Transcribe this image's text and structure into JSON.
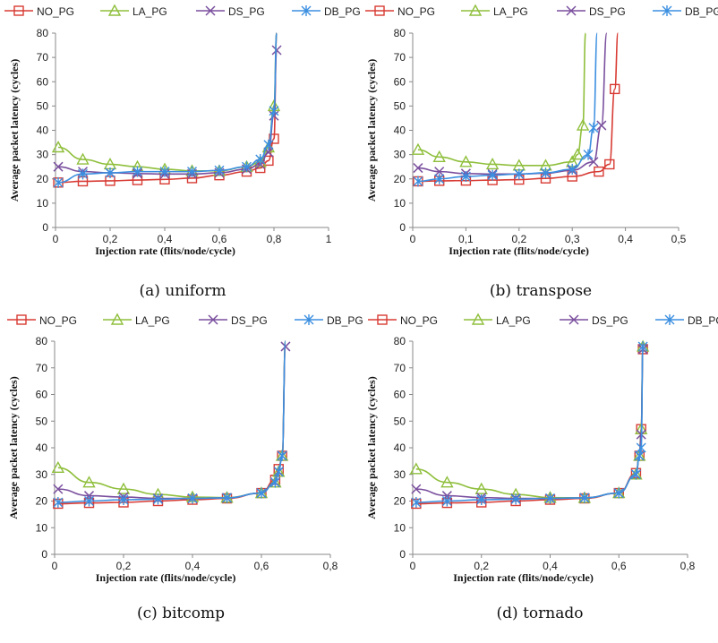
{
  "figure": {
    "legend_entries": [
      "NO_PG",
      "LA_PG",
      "DS_PG",
      "DB_PG"
    ],
    "colors": {
      "NO_PG": "#d83b34",
      "LA_PG": "#8fbf3c",
      "DS_PG": "#7a4f9e",
      "DB_PG": "#3b8fe0"
    },
    "markers": {
      "NO_PG": "square",
      "LA_PG": "triangle",
      "DS_PG": "x",
      "DB_PG": "asterisk"
    }
  },
  "chart_data": [
    {
      "type": "line",
      "caption": "(a) uniform",
      "xlabel": "Injection rate (flits/node/cycle)",
      "ylabel": "Average packet latency (cycles)",
      "xlim": [
        0,
        1
      ],
      "ylim": [
        0,
        80
      ],
      "xticks": [
        "0",
        "0,2",
        "0,4",
        "0,6",
        "0,8",
        "1"
      ],
      "xtick_values": [
        0,
        0.2,
        0.4,
        0.6,
        0.8,
        1.0
      ],
      "yticks": [
        "0",
        "10",
        "20",
        "30",
        "40",
        "50",
        "60",
        "70",
        "80"
      ],
      "ytick_values": [
        0,
        10,
        20,
        30,
        40,
        50,
        60,
        70,
        80
      ],
      "grid": false,
      "legend": "top",
      "series": [
        {
          "name": "NO_PG",
          "points": [
            [
              0.01,
              18.5
            ],
            [
              0.1,
              19
            ],
            [
              0.2,
              19.2
            ],
            [
              0.3,
              19.5
            ],
            [
              0.4,
              19.8
            ],
            [
              0.5,
              20.3
            ],
            [
              0.6,
              21.5
            ],
            [
              0.7,
              23
            ],
            [
              0.75,
              24.5
            ],
            [
              0.78,
              27.5
            ],
            [
              0.8,
              36.5
            ],
            [
              0.81,
              80
            ]
          ]
        },
        {
          "name": "LA_PG",
          "points": [
            [
              0.01,
              33
            ],
            [
              0.1,
              28
            ],
            [
              0.2,
              26
            ],
            [
              0.3,
              25
            ],
            [
              0.4,
              24
            ],
            [
              0.5,
              23.3
            ],
            [
              0.6,
              23.3
            ],
            [
              0.7,
              25
            ],
            [
              0.75,
              27
            ],
            [
              0.78,
              33
            ],
            [
              0.8,
              50
            ],
            [
              0.81,
              80
            ]
          ]
        },
        {
          "name": "DS_PG",
          "points": [
            [
              0.01,
              25
            ],
            [
              0.1,
              23
            ],
            [
              0.2,
              22.5
            ],
            [
              0.3,
              22.2
            ],
            [
              0.4,
              22
            ],
            [
              0.5,
              22
            ],
            [
              0.6,
              22.5
            ],
            [
              0.7,
              24
            ],
            [
              0.75,
              26
            ],
            [
              0.78,
              31
            ],
            [
              0.8,
              46
            ],
            [
              0.81,
              73
            ]
          ]
        },
        {
          "name": "DB_PG",
          "points": [
            [
              0.01,
              18.5
            ],
            [
              0.1,
              22
            ],
            [
              0.2,
              22.5
            ],
            [
              0.3,
              23
            ],
            [
              0.4,
              23
            ],
            [
              0.5,
              23
            ],
            [
              0.6,
              23.5
            ],
            [
              0.7,
              25
            ],
            [
              0.75,
              28
            ],
            [
              0.78,
              34
            ],
            [
              0.8,
              48
            ],
            [
              0.81,
              80
            ]
          ]
        }
      ]
    },
    {
      "type": "line",
      "caption": "(b) transpose",
      "xlabel": "Injection rate (flits/node/cycle)",
      "ylabel": "Average packet latency (cycles)",
      "xlim": [
        0,
        0.5
      ],
      "ylim": [
        0,
        80
      ],
      "xticks": [
        "0",
        "0,1",
        "0,2",
        "0,3",
        "0,4",
        "0,5"
      ],
      "xtick_values": [
        0,
        0.1,
        0.2,
        0.3,
        0.4,
        0.5
      ],
      "yticks": [
        "0",
        "10",
        "20",
        "30",
        "40",
        "50",
        "60",
        "70",
        "80"
      ],
      "ytick_values": [
        0,
        10,
        20,
        30,
        40,
        50,
        60,
        70,
        80
      ],
      "grid": false,
      "legend": "top",
      "series": [
        {
          "name": "NO_PG",
          "points": [
            [
              0.01,
              19
            ],
            [
              0.05,
              19.2
            ],
            [
              0.1,
              19.3
            ],
            [
              0.15,
              19.5
            ],
            [
              0.2,
              19.7
            ],
            [
              0.25,
              20.2
            ],
            [
              0.3,
              21
            ],
            [
              0.35,
              23
            ],
            [
              0.37,
              26
            ],
            [
              0.38,
              57
            ],
            [
              0.386,
              80
            ]
          ]
        },
        {
          "name": "LA_PG",
          "points": [
            [
              0.01,
              32
            ],
            [
              0.05,
              29
            ],
            [
              0.1,
              27
            ],
            [
              0.15,
              26
            ],
            [
              0.2,
              25.5
            ],
            [
              0.25,
              25.5
            ],
            [
              0.3,
              27
            ],
            [
              0.31,
              30
            ],
            [
              0.32,
              42
            ],
            [
              0.325,
              80
            ]
          ]
        },
        {
          "name": "DS_PG",
          "points": [
            [
              0.01,
              24.5
            ],
            [
              0.05,
              23
            ],
            [
              0.1,
              22.2
            ],
            [
              0.15,
              22
            ],
            [
              0.2,
              22
            ],
            [
              0.25,
              22.3
            ],
            [
              0.3,
              23.5
            ],
            [
              0.34,
              27
            ],
            [
              0.355,
              42
            ],
            [
              0.365,
              80
            ]
          ]
        },
        {
          "name": "DB_PG",
          "points": [
            [
              0.01,
              19
            ],
            [
              0.05,
              20
            ],
            [
              0.1,
              21
            ],
            [
              0.15,
              21.5
            ],
            [
              0.2,
              22
            ],
            [
              0.25,
              22.5
            ],
            [
              0.3,
              24
            ],
            [
              0.33,
              30
            ],
            [
              0.34,
              41
            ],
            [
              0.347,
              80
            ]
          ]
        }
      ]
    },
    {
      "type": "line",
      "caption": "(c) bitcomp",
      "xlabel": "Injection rate (flits/node/cycle)",
      "ylabel": "Average packet latency (cycles)",
      "xlim": [
        0,
        0.8
      ],
      "ylim": [
        0,
        80
      ],
      "xticks": [
        "0",
        "0,2",
        "0,4",
        "0,6",
        "0,8"
      ],
      "xtick_values": [
        0,
        0.2,
        0.4,
        0.6,
        0.8
      ],
      "yticks": [
        "0",
        "10",
        "20",
        "30",
        "40",
        "50",
        "60",
        "70",
        "80"
      ],
      "ytick_values": [
        0,
        10,
        20,
        30,
        40,
        50,
        60,
        70,
        80
      ],
      "grid": false,
      "legend": "top",
      "series": [
        {
          "name": "NO_PG",
          "points": [
            [
              0.01,
              19
            ],
            [
              0.1,
              19.3
            ],
            [
              0.2,
              19.5
            ],
            [
              0.3,
              20
            ],
            [
              0.4,
              20.5
            ],
            [
              0.5,
              21
            ],
            [
              0.6,
              23
            ],
            [
              0.64,
              28
            ],
            [
              0.65,
              32
            ],
            [
              0.66,
              37
            ],
            [
              0.67,
              80
            ]
          ]
        },
        {
          "name": "LA_PG",
          "points": [
            [
              0.01,
              32.5
            ],
            [
              0.1,
              27
            ],
            [
              0.2,
              24.5
            ],
            [
              0.3,
              22.5
            ],
            [
              0.4,
              21.5
            ],
            [
              0.5,
              21.3
            ],
            [
              0.6,
              23
            ],
            [
              0.64,
              27
            ],
            [
              0.65,
              31
            ],
            [
              0.66,
              37
            ],
            [
              0.67,
              80
            ]
          ]
        },
        {
          "name": "DS_PG",
          "points": [
            [
              0.01,
              24.5
            ],
            [
              0.1,
              22
            ],
            [
              0.2,
              21.5
            ],
            [
              0.3,
              21
            ],
            [
              0.4,
              21
            ],
            [
              0.5,
              21.2
            ],
            [
              0.6,
              23
            ],
            [
              0.64,
              27
            ],
            [
              0.65,
              31
            ],
            [
              0.66,
              37
            ],
            [
              0.67,
              78
            ]
          ]
        },
        {
          "name": "DB_PG",
          "points": [
            [
              0.01,
              19.5
            ],
            [
              0.1,
              20
            ],
            [
              0.2,
              20.5
            ],
            [
              0.3,
              20.7
            ],
            [
              0.4,
              21
            ],
            [
              0.5,
              21.2
            ],
            [
              0.6,
              23
            ],
            [
              0.64,
              27
            ],
            [
              0.65,
              31
            ],
            [
              0.66,
              37
            ],
            [
              0.67,
              80
            ]
          ]
        }
      ]
    },
    {
      "type": "line",
      "caption": "(d) tornado",
      "xlabel": "Injection rate (flits/node/cycle)",
      "ylabel": "Average packet latency (cycles)",
      "xlim": [
        0,
        0.8
      ],
      "ylim": [
        0,
        80
      ],
      "xticks": [
        "0",
        "0,2",
        "0,4",
        "0,6",
        "0,8"
      ],
      "xtick_values": [
        0,
        0.2,
        0.4,
        0.6,
        0.8
      ],
      "yticks": [
        "0",
        "10",
        "20",
        "30",
        "40",
        "50",
        "60",
        "70",
        "80"
      ],
      "ytick_values": [
        0,
        10,
        20,
        30,
        40,
        50,
        60,
        70,
        80
      ],
      "grid": false,
      "legend": "top",
      "series": [
        {
          "name": "NO_PG",
          "points": [
            [
              0.01,
              19
            ],
            [
              0.1,
              19.3
            ],
            [
              0.2,
              19.5
            ],
            [
              0.3,
              20
            ],
            [
              0.4,
              20.5
            ],
            [
              0.5,
              21
            ],
            [
              0.6,
              23
            ],
            [
              0.65,
              30.5
            ],
            [
              0.66,
              37
            ],
            [
              0.665,
              47
            ],
            [
              0.67,
              77
            ]
          ]
        },
        {
          "name": "LA_PG",
          "points": [
            [
              0.01,
              32
            ],
            [
              0.1,
              27
            ],
            [
              0.2,
              24.5
            ],
            [
              0.3,
              22.5
            ],
            [
              0.4,
              21.3
            ],
            [
              0.5,
              21.2
            ],
            [
              0.6,
              23
            ],
            [
              0.65,
              30
            ],
            [
              0.66,
              37
            ],
            [
              0.665,
              47
            ],
            [
              0.67,
              78
            ]
          ]
        },
        {
          "name": "DS_PG",
          "points": [
            [
              0.01,
              24.5
            ],
            [
              0.1,
              22
            ],
            [
              0.2,
              21.3
            ],
            [
              0.3,
              21
            ],
            [
              0.4,
              21
            ],
            [
              0.5,
              21.2
            ],
            [
              0.6,
              23
            ],
            [
              0.65,
              30
            ],
            [
              0.66,
              37
            ],
            [
              0.665,
              45
            ],
            [
              0.67,
              77
            ]
          ]
        },
        {
          "name": "DB_PG",
          "points": [
            [
              0.01,
              19.5
            ],
            [
              0.1,
              20
            ],
            [
              0.2,
              20.5
            ],
            [
              0.3,
              20.7
            ],
            [
              0.4,
              21
            ],
            [
              0.5,
              21.2
            ],
            [
              0.6,
              23
            ],
            [
              0.65,
              30
            ],
            [
              0.66,
              37
            ],
            [
              0.665,
              40
            ],
            [
              0.67,
              78
            ]
          ]
        }
      ]
    }
  ]
}
